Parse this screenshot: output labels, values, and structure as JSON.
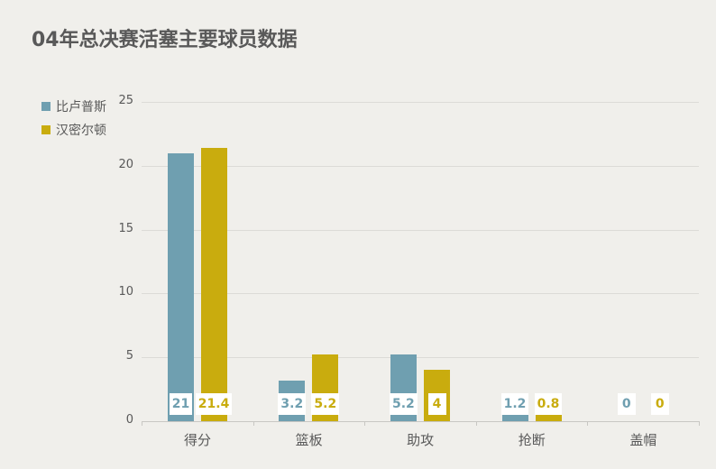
{
  "title": "04年总决赛活塞主要球员数据",
  "legend": [
    {
      "label": "比卢普斯",
      "color": "#6f9fb0"
    },
    {
      "label": "汉密尔顿",
      "color": "#c9ac0e"
    }
  ],
  "y_ticks": [
    "0",
    "5",
    "10",
    "15",
    "20",
    "25"
  ],
  "x_labels": [
    "得分",
    "篮板",
    "助攻",
    "抢断",
    "盖帽"
  ],
  "chart_data": {
    "type": "bar",
    "title": "04年总决赛活塞主要球员数据",
    "categories": [
      "得分",
      "篮板",
      "助攻",
      "抢断",
      "盖帽"
    ],
    "series": [
      {
        "name": "比卢普斯",
        "color": "#6f9fb0",
        "values": [
          21,
          3.2,
          5.2,
          1.2,
          0
        ]
      },
      {
        "name": "汉密尔顿",
        "color": "#c9ac0e",
        "values": [
          21.4,
          5.2,
          4,
          0.8,
          0
        ]
      }
    ],
    "xlabel": "",
    "ylabel": "",
    "ylim": [
      0,
      25
    ],
    "yticks": [
      0,
      5,
      10,
      15,
      20,
      25
    ],
    "grid": true,
    "legend_position": "top-left",
    "data_labels": true
  }
}
